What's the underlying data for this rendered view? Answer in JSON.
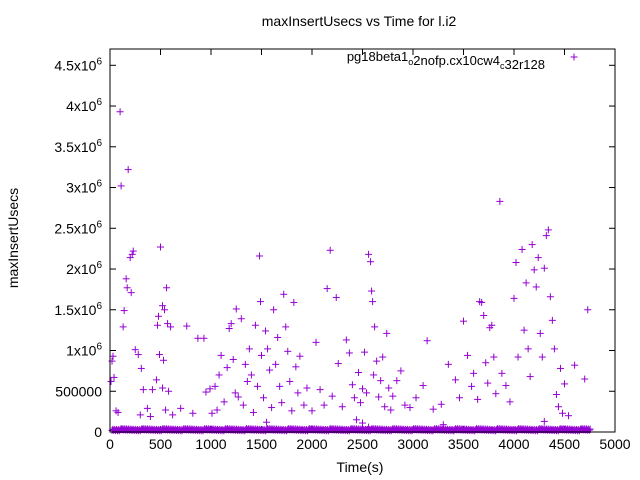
{
  "chart_data": {
    "type": "scatter",
    "title": "maxInsertUsecs vs Time for l.i2",
    "xlabel": "Time(s)",
    "ylabel": "maxInsertUsecs",
    "xlim": [
      0,
      5000
    ],
    "ylim": [
      0,
      4700000
    ],
    "grid": false,
    "legend_position": "top-right",
    "marker": "+",
    "color": "#9400d3",
    "xticks": [
      {
        "value": 0,
        "label": "0"
      },
      {
        "value": 500,
        "label": "500"
      },
      {
        "value": 1000,
        "label": "1000"
      },
      {
        "value": 1500,
        "label": "1500"
      },
      {
        "value": 2000,
        "label": "2000"
      },
      {
        "value": 2500,
        "label": "2500"
      },
      {
        "value": 3000,
        "label": "3000"
      },
      {
        "value": 3500,
        "label": "3500"
      },
      {
        "value": 4000,
        "label": "4000"
      },
      {
        "value": 4500,
        "label": "4500"
      },
      {
        "value": 5000,
        "label": "5000"
      }
    ],
    "yticks": [
      {
        "value": 0,
        "base": "0",
        "exp": ""
      },
      {
        "value": 500000,
        "base": "500000",
        "exp": ""
      },
      {
        "value": 1000000,
        "base": "1x10",
        "exp": "6"
      },
      {
        "value": 1500000,
        "base": "1.5x10",
        "exp": "6"
      },
      {
        "value": 2000000,
        "base": "2x10",
        "exp": "6"
      },
      {
        "value": 2500000,
        "base": "2.5x10",
        "exp": "6"
      },
      {
        "value": 3000000,
        "base": "3x10",
        "exp": "6"
      },
      {
        "value": 3500000,
        "base": "3.5x10",
        "exp": "6"
      },
      {
        "value": 4000000,
        "base": "4x10",
        "exp": "6"
      },
      {
        "value": 4500000,
        "base": "4.5x10",
        "exp": "6"
      }
    ],
    "series": [
      {
        "legend_parts": [
          {
            "text": "pg18beta1",
            "sub": false
          },
          {
            "text": "o",
            "sub": true
          },
          {
            "text": "2nofp.cx10cw4",
            "sub": false
          },
          {
            "text": "c",
            "sub": true
          },
          {
            "text": "32r128",
            "sub": false
          }
        ],
        "points": [
          [
            100,
            3930000
          ],
          [
            110,
            3020000
          ],
          [
            180,
            3220000
          ],
          [
            160,
            1880000
          ],
          [
            170,
            1770000
          ],
          [
            210,
            1710000
          ],
          [
            220,
            2180000
          ],
          [
            230,
            2220000
          ],
          [
            200,
            2140000
          ],
          [
            140,
            1490000
          ],
          [
            130,
            1290000
          ],
          [
            30,
            930000
          ],
          [
            20,
            870000
          ],
          [
            40,
            670000
          ],
          [
            10,
            620000
          ],
          [
            60,
            260000
          ],
          [
            80,
            240000
          ],
          [
            250,
            1010000
          ],
          [
            280,
            950000
          ],
          [
            310,
            780000
          ],
          [
            330,
            520000
          ],
          [
            370,
            290000
          ],
          [
            400,
            190000
          ],
          [
            300,
            210000
          ],
          [
            480,
            1420000
          ],
          [
            470,
            1310000
          ],
          [
            500,
            2270000
          ],
          [
            520,
            1550000
          ],
          [
            540,
            1500000
          ],
          [
            560,
            1770000
          ],
          [
            570,
            1330000
          ],
          [
            600,
            1290000
          ],
          [
            490,
            950000
          ],
          [
            530,
            880000
          ],
          [
            460,
            640000
          ],
          [
            420,
            520000
          ],
          [
            520,
            540000
          ],
          [
            550,
            270000
          ],
          [
            580,
            500000
          ],
          [
            620,
            210000
          ],
          [
            700,
            290000
          ],
          [
            760,
            1300000
          ],
          [
            820,
            230000
          ],
          [
            870,
            1150000
          ],
          [
            930,
            1150000
          ],
          [
            950,
            490000
          ],
          [
            990,
            530000
          ],
          [
            1010,
            230000
          ],
          [
            1040,
            560000
          ],
          [
            1060,
            270000
          ],
          [
            1080,
            700000
          ],
          [
            1100,
            940000
          ],
          [
            1130,
            370000
          ],
          [
            1160,
            790000
          ],
          [
            1180,
            1270000
          ],
          [
            1200,
            1330000
          ],
          [
            1220,
            890000
          ],
          [
            1240,
            480000
          ],
          [
            1250,
            1510000
          ],
          [
            1270,
            430000
          ],
          [
            1300,
            1390000
          ],
          [
            1320,
            330000
          ],
          [
            1340,
            830000
          ],
          [
            1360,
            620000
          ],
          [
            1380,
            1020000
          ],
          [
            1400,
            700000
          ],
          [
            1420,
            240000
          ],
          [
            1440,
            1310000
          ],
          [
            1460,
            560000
          ],
          [
            1480,
            2160000
          ],
          [
            1490,
            1600000
          ],
          [
            1500,
            940000
          ],
          [
            1520,
            420000
          ],
          [
            1540,
            1240000
          ],
          [
            1560,
            1020000
          ],
          [
            1580,
            760000
          ],
          [
            1600,
            300000
          ],
          [
            1620,
            1500000
          ],
          [
            1640,
            830000
          ],
          [
            1660,
            1160000
          ],
          [
            1680,
            560000
          ],
          [
            1700,
            360000
          ],
          [
            1720,
            1690000
          ],
          [
            1740,
            1290000
          ],
          [
            1760,
            990000
          ],
          [
            1780,
            620000
          ],
          [
            1800,
            260000
          ],
          [
            1820,
            1590000
          ],
          [
            1840,
            800000
          ],
          [
            1860,
            480000
          ],
          [
            1880,
            930000
          ],
          [
            1920,
            330000
          ],
          [
            1950,
            540000
          ],
          [
            2000,
            260000
          ],
          [
            2040,
            1100000
          ],
          [
            2080,
            520000
          ],
          [
            2120,
            330000
          ],
          [
            2150,
            1760000
          ],
          [
            2180,
            2230000
          ],
          [
            2200,
            440000
          ],
          [
            2240,
            1650000
          ],
          [
            2260,
            840000
          ],
          [
            2300,
            310000
          ],
          [
            2340,
            1130000
          ],
          [
            2370,
            970000
          ],
          [
            2400,
            580000
          ],
          [
            2420,
            420000
          ],
          [
            2460,
            730000
          ],
          [
            2480,
            360000
          ],
          [
            2500,
            530000
          ],
          [
            2520,
            980000
          ],
          [
            2540,
            480000
          ],
          [
            2560,
            2180000
          ],
          [
            2580,
            2090000
          ],
          [
            2590,
            1730000
          ],
          [
            2600,
            1600000
          ],
          [
            2610,
            700000
          ],
          [
            2620,
            1290000
          ],
          [
            2640,
            870000
          ],
          [
            2660,
            430000
          ],
          [
            2680,
            630000
          ],
          [
            2700,
            920000
          ],
          [
            2720,
            310000
          ],
          [
            2740,
            1210000
          ],
          [
            2760,
            540000
          ],
          [
            2780,
            270000
          ],
          [
            2800,
            440000
          ],
          [
            2840,
            630000
          ],
          [
            2880,
            750000
          ],
          [
            2920,
            330000
          ],
          [
            2970,
            300000
          ],
          [
            3030,
            420000
          ],
          [
            3100,
            570000
          ],
          [
            3140,
            1120000
          ],
          [
            3200,
            280000
          ],
          [
            3280,
            340000
          ],
          [
            3350,
            830000
          ],
          [
            3420,
            640000
          ],
          [
            3460,
            420000
          ],
          [
            3500,
            1360000
          ],
          [
            3540,
            940000
          ],
          [
            3580,
            560000
          ],
          [
            3600,
            720000
          ],
          [
            3640,
            400000
          ],
          [
            3660,
            1600000
          ],
          [
            3680,
            1590000
          ],
          [
            3700,
            1430000
          ],
          [
            3720,
            850000
          ],
          [
            3740,
            600000
          ],
          [
            3760,
            1280000
          ],
          [
            3780,
            1310000
          ],
          [
            3800,
            920000
          ],
          [
            3820,
            470000
          ],
          [
            3860,
            2830000
          ],
          [
            3880,
            720000
          ],
          [
            3920,
            570000
          ],
          [
            3960,
            370000
          ],
          [
            4000,
            1640000
          ],
          [
            4020,
            2080000
          ],
          [
            4040,
            920000
          ],
          [
            4080,
            2240000
          ],
          [
            4100,
            1250000
          ],
          [
            4120,
            1830000
          ],
          [
            4140,
            1020000
          ],
          [
            4160,
            680000
          ],
          [
            4180,
            2300000
          ],
          [
            4200,
            1990000
          ],
          [
            4220,
            1780000
          ],
          [
            4240,
            2140000
          ],
          [
            4260,
            1210000
          ],
          [
            4280,
            920000
          ],
          [
            4300,
            2010000
          ],
          [
            4320,
            2410000
          ],
          [
            4340,
            2480000
          ],
          [
            4360,
            1660000
          ],
          [
            4380,
            1370000
          ],
          [
            4400,
            1020000
          ],
          [
            4420,
            460000
          ],
          [
            4440,
            310000
          ],
          [
            4460,
            780000
          ],
          [
            4480,
            230000
          ],
          [
            4500,
            590000
          ],
          [
            4540,
            200000
          ],
          [
            4600,
            820000
          ],
          [
            4700,
            650000
          ],
          [
            4730,
            1500000
          ],
          [
            2440,
            150000
          ],
          [
            2500,
            110000
          ],
          [
            2560,
            60000
          ],
          [
            1550,
            120000
          ],
          [
            3300,
            90000
          ],
          [
            4300,
            130000
          ]
        ]
      }
    ]
  }
}
